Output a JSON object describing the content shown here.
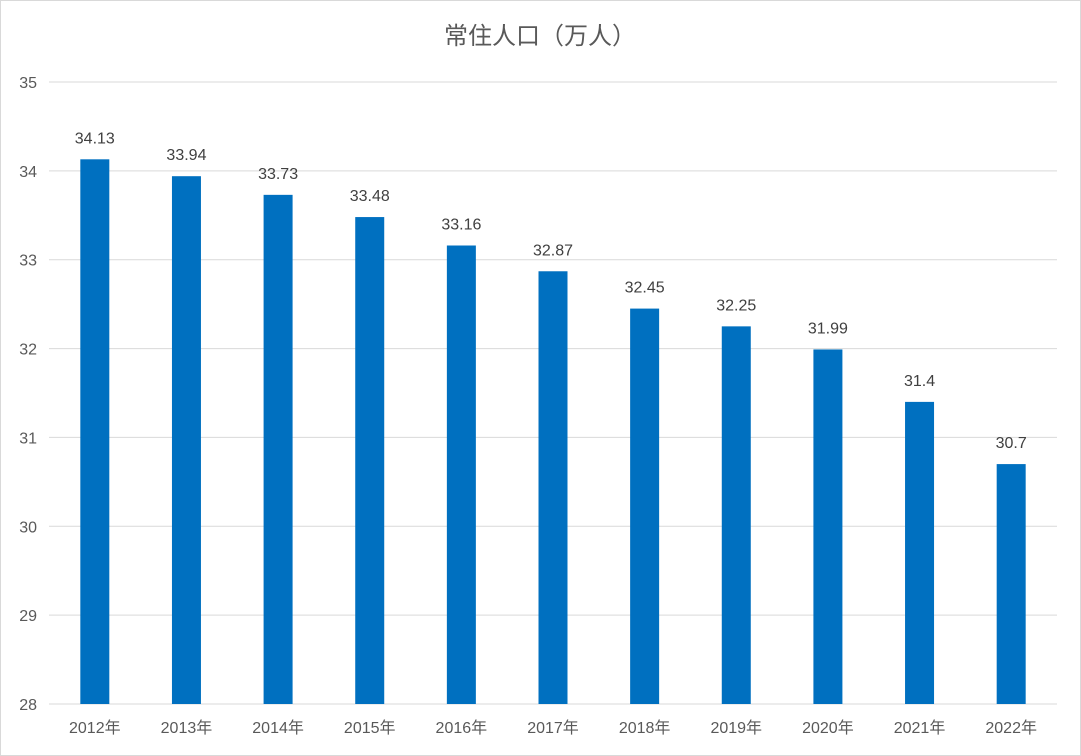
{
  "chart_data": {
    "type": "bar",
    "title": "常住人口（万人）",
    "xlabel": "",
    "ylabel": "",
    "categories": [
      "2012年",
      "2013年",
      "2014年",
      "2015年",
      "2016年",
      "2017年",
      "2018年",
      "2019年",
      "2020年",
      "2021年",
      "2022年"
    ],
    "values": [
      34.13,
      33.94,
      33.73,
      33.48,
      33.16,
      32.87,
      32.45,
      32.25,
      31.99,
      31.4,
      30.7
    ],
    "data_labels": [
      "34.13",
      "33.94",
      "33.73",
      "33.48",
      "33.16",
      "32.87",
      "32.45",
      "32.25",
      "31.99",
      "31.4",
      "30.7"
    ],
    "ylim": [
      28,
      35
    ],
    "yticks": [
      "28",
      "29",
      "30",
      "31",
      "32",
      "33",
      "34",
      "35"
    ],
    "grid": true,
    "legend": "none",
    "bar_color": "#0070C0"
  }
}
